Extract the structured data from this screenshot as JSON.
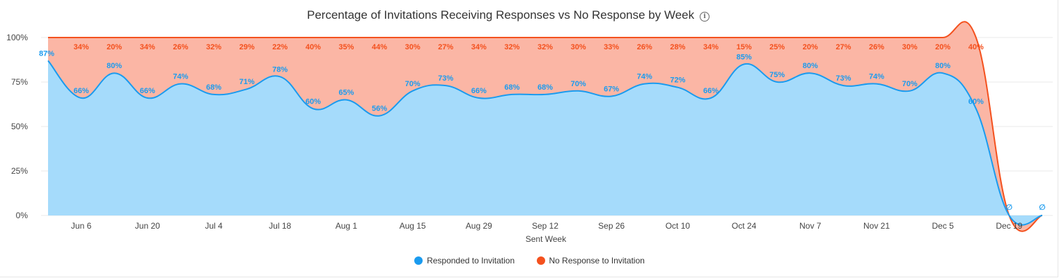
{
  "chart_data": {
    "type": "area",
    "title": "Percentage of Invitations Receiving Responses vs No Response by Week",
    "xlabel": "Sent Week",
    "ylabel": "",
    "ylim": [
      0,
      100
    ],
    "y_ticks": [
      "0%",
      "25%",
      "50%",
      "75%",
      "100%"
    ],
    "x_tick_labels": [
      "Jun 6",
      "Jun 20",
      "Jul 4",
      "Jul 18",
      "Aug 1",
      "Aug 15",
      "Aug 29",
      "Sep 12",
      "Sep 26",
      "Oct 10",
      "Oct 24",
      "Nov 7",
      "Nov 21",
      "Dec 5",
      "Dec 19"
    ],
    "stacked": true,
    "legend_position": "bottom",
    "grid": true,
    "series": [
      {
        "name": "Responded to Invitation",
        "color": "#1a9bef",
        "fill": "#a5dbfb",
        "values": [
          87,
          66,
          80,
          66,
          74,
          68,
          71,
          78,
          60,
          65,
          56,
          70,
          73,
          66,
          68,
          68,
          70,
          67,
          74,
          72,
          66,
          85,
          75,
          80,
          73,
          74,
          70,
          80,
          60,
          0,
          0
        ],
        "labels": [
          "87%",
          "66%",
          "80%",
          "66%",
          "74%",
          "68%",
          "71%",
          "78%",
          "60%",
          "65%",
          "56%",
          "70%",
          "73%",
          "66%",
          "68%",
          "68%",
          "70%",
          "67%",
          "74%",
          "72%",
          "66%",
          "85%",
          "75%",
          "80%",
          "73%",
          "74%",
          "70%",
          "80%",
          "60%",
          "∅",
          "∅"
        ]
      },
      {
        "name": "No Response to Invitation",
        "color": "#f4511e",
        "fill": "#fbb6a5",
        "values": [
          13,
          34,
          20,
          34,
          26,
          32,
          29,
          22,
          40,
          35,
          44,
          30,
          27,
          34,
          32,
          32,
          30,
          33,
          26,
          28,
          34,
          15,
          25,
          20,
          27,
          26,
          30,
          20,
          40,
          0,
          0
        ],
        "labels": [
          "",
          "34%",
          "20%",
          "34%",
          "26%",
          "32%",
          "29%",
          "22%",
          "40%",
          "35%",
          "44%",
          "30%",
          "27%",
          "34%",
          "32%",
          "32%",
          "30%",
          "33%",
          "26%",
          "28%",
          "34%",
          "15%",
          "25%",
          "20%",
          "27%",
          "26%",
          "30%",
          "20%",
          "40%",
          "",
          ""
        ]
      }
    ]
  }
}
